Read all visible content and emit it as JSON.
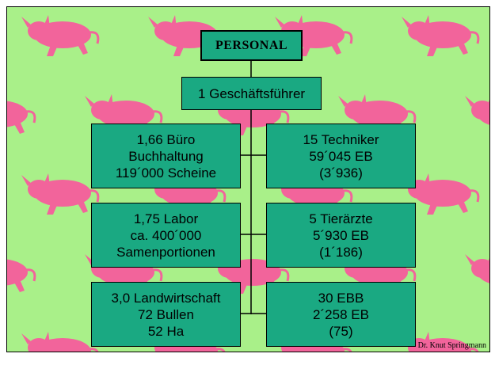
{
  "title": "PERSONAL",
  "manager": "1 Geschäftsführer",
  "nodes": [
    {
      "lines": [
        "1,66 Büro",
        "Buchhaltung",
        "119´000 Scheine"
      ]
    },
    {
      "lines": [
        "15 Techniker",
        "59´045 EB",
        "(3´936)"
      ]
    },
    {
      "lines": [
        "1,75 Labor",
        "ca. 400´000",
        "Samenportionen"
      ]
    },
    {
      "lines": [
        "5 Tierärzte",
        "5´930 EB",
        "(1´186)"
      ]
    },
    {
      "lines": [
        "3,0 Landwirtschaft",
        "72 Bullen",
        "52 Ha"
      ]
    },
    {
      "lines": [
        "30 EBB",
        "2´258 EB",
        "(75)"
      ]
    }
  ],
  "footer": "Dr. Knut Springmann"
}
